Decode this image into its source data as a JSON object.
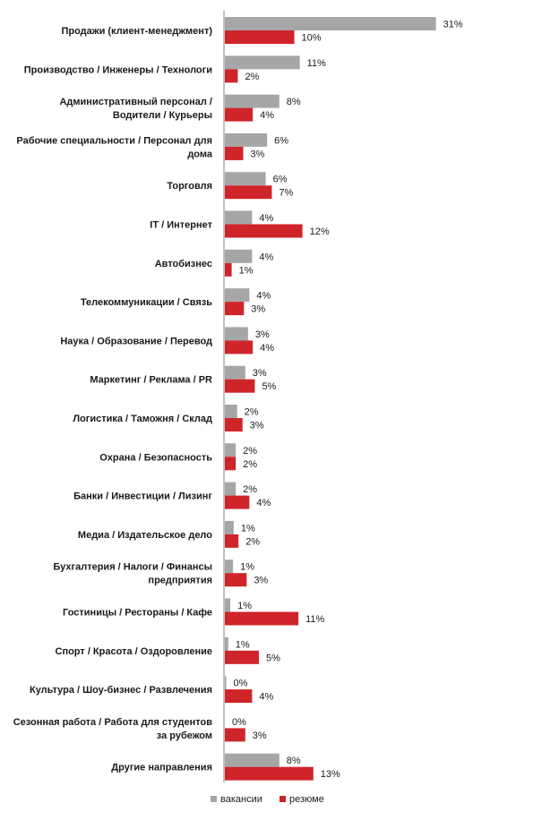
{
  "chart_data": {
    "type": "bar",
    "orientation": "horizontal",
    "categories": [
      [
        "Продажи (клиент-менеджмент)"
      ],
      [
        "Производство  / Инженеры / Технологи"
      ],
      [
        "Административный  персонал  /",
        "Водители / Курьеры"
      ],
      [
        "Рабочие  специальности  / Персонал для",
        "дома"
      ],
      [
        "Торговля"
      ],
      [
        "IT / Интернет"
      ],
      [
        "Автобизнес"
      ],
      [
        "Телекоммуникации  / Связь"
      ],
      [
        "Наука  / Образование  / Перевод"
      ],
      [
        "Маркетинг  / Реклама  / PR"
      ],
      [
        "Логистика  / Таможня  / Склад"
      ],
      [
        "Охрана  / Безопасность"
      ],
      [
        "Банки  / Инвестиции  /  Лизинг"
      ],
      [
        "Медиа / Издательское  дело"
      ],
      [
        "Бухгалтерия  / Налоги / Финансы",
        "предприятия"
      ],
      [
        "Гостиницы  / Рестораны  / Кафе"
      ],
      [
        "Спорт  / Красота  / Оздоровление"
      ],
      [
        "Культура  / Шоу-бизнес / Развлечения"
      ],
      [
        "Сезонная работа  / Работа для студентов",
        "за рубежом"
      ],
      [
        "Другие направления"
      ]
    ],
    "series": [
      {
        "name": "вакансии",
        "color": "#a6a6a6",
        "values": [
          31,
          11,
          8,
          6,
          6,
          4,
          4,
          4,
          3,
          3,
          2,
          2,
          2,
          1,
          1,
          1,
          1,
          0,
          0,
          8
        ],
        "value_labels": [
          "31%",
          "11%",
          "8%",
          "6%",
          "6%",
          "4%",
          "4%",
          "4%",
          "3%",
          "3%",
          "2%",
          "2%",
          "2%",
          "1%",
          "1%",
          "1%",
          "1%",
          "0%",
          "0%",
          "8%"
        ],
        "plot_values": [
          31,
          11,
          8,
          6.2,
          6,
          4,
          4,
          3.6,
          3.4,
          3,
          1.8,
          1.6,
          1.6,
          1.3,
          1.2,
          0.8,
          0.5,
          0.2,
          0,
          8
        ]
      },
      {
        "name": "резюме",
        "color": "#d0242b",
        "values": [
          10,
          2,
          4,
          3,
          7,
          12,
          1,
          3,
          4,
          5,
          3,
          2,
          4,
          2,
          3,
          11,
          5,
          4,
          3,
          13
        ],
        "value_labels": [
          "10%",
          "2%",
          "4%",
          "3%",
          "7%",
          "12%",
          "1%",
          "3%",
          "4%",
          "5%",
          "3%",
          "2%",
          "4%",
          "2%",
          "3%",
          "11%",
          "5%",
          "4%",
          "3%",
          "13%"
        ],
        "plot_values": [
          10.2,
          1.9,
          4.1,
          2.7,
          6.9,
          11.4,
          1.0,
          2.8,
          4.1,
          4.4,
          2.6,
          1.6,
          3.6,
          2.0,
          3.2,
          10.8,
          5.0,
          4.0,
          3.0,
          13.0
        ]
      }
    ],
    "grid": false,
    "legend_position": "bottom-center"
  }
}
